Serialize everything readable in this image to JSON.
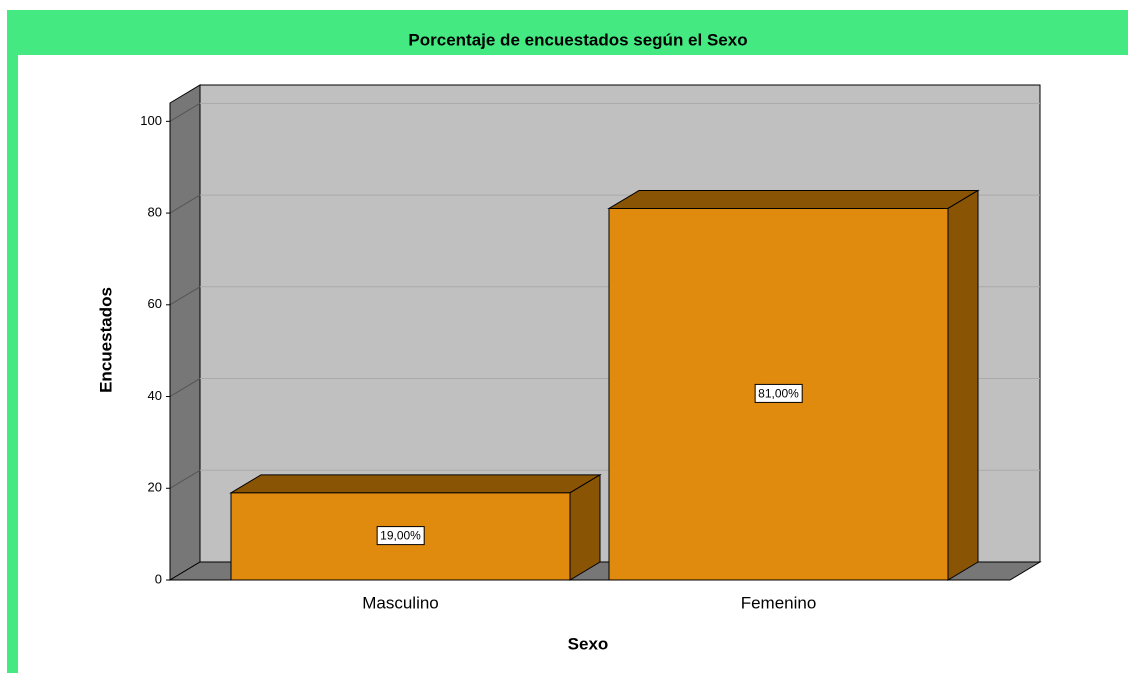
{
  "chart_data": {
    "type": "bar",
    "title": "Porcentaje de encuestados según el Sexo",
    "xlabel": "Sexo",
    "ylabel": "Encuestados",
    "categories": [
      "Masculino",
      "Femenino"
    ],
    "values": [
      19,
      81
    ],
    "value_labels": [
      "19,00%",
      "81,00%"
    ],
    "color": "#e08a0e",
    "ylim": [
      0,
      104
    ],
    "yticks": [
      0,
      20,
      40,
      60,
      80,
      100
    ],
    "grid": true
  }
}
